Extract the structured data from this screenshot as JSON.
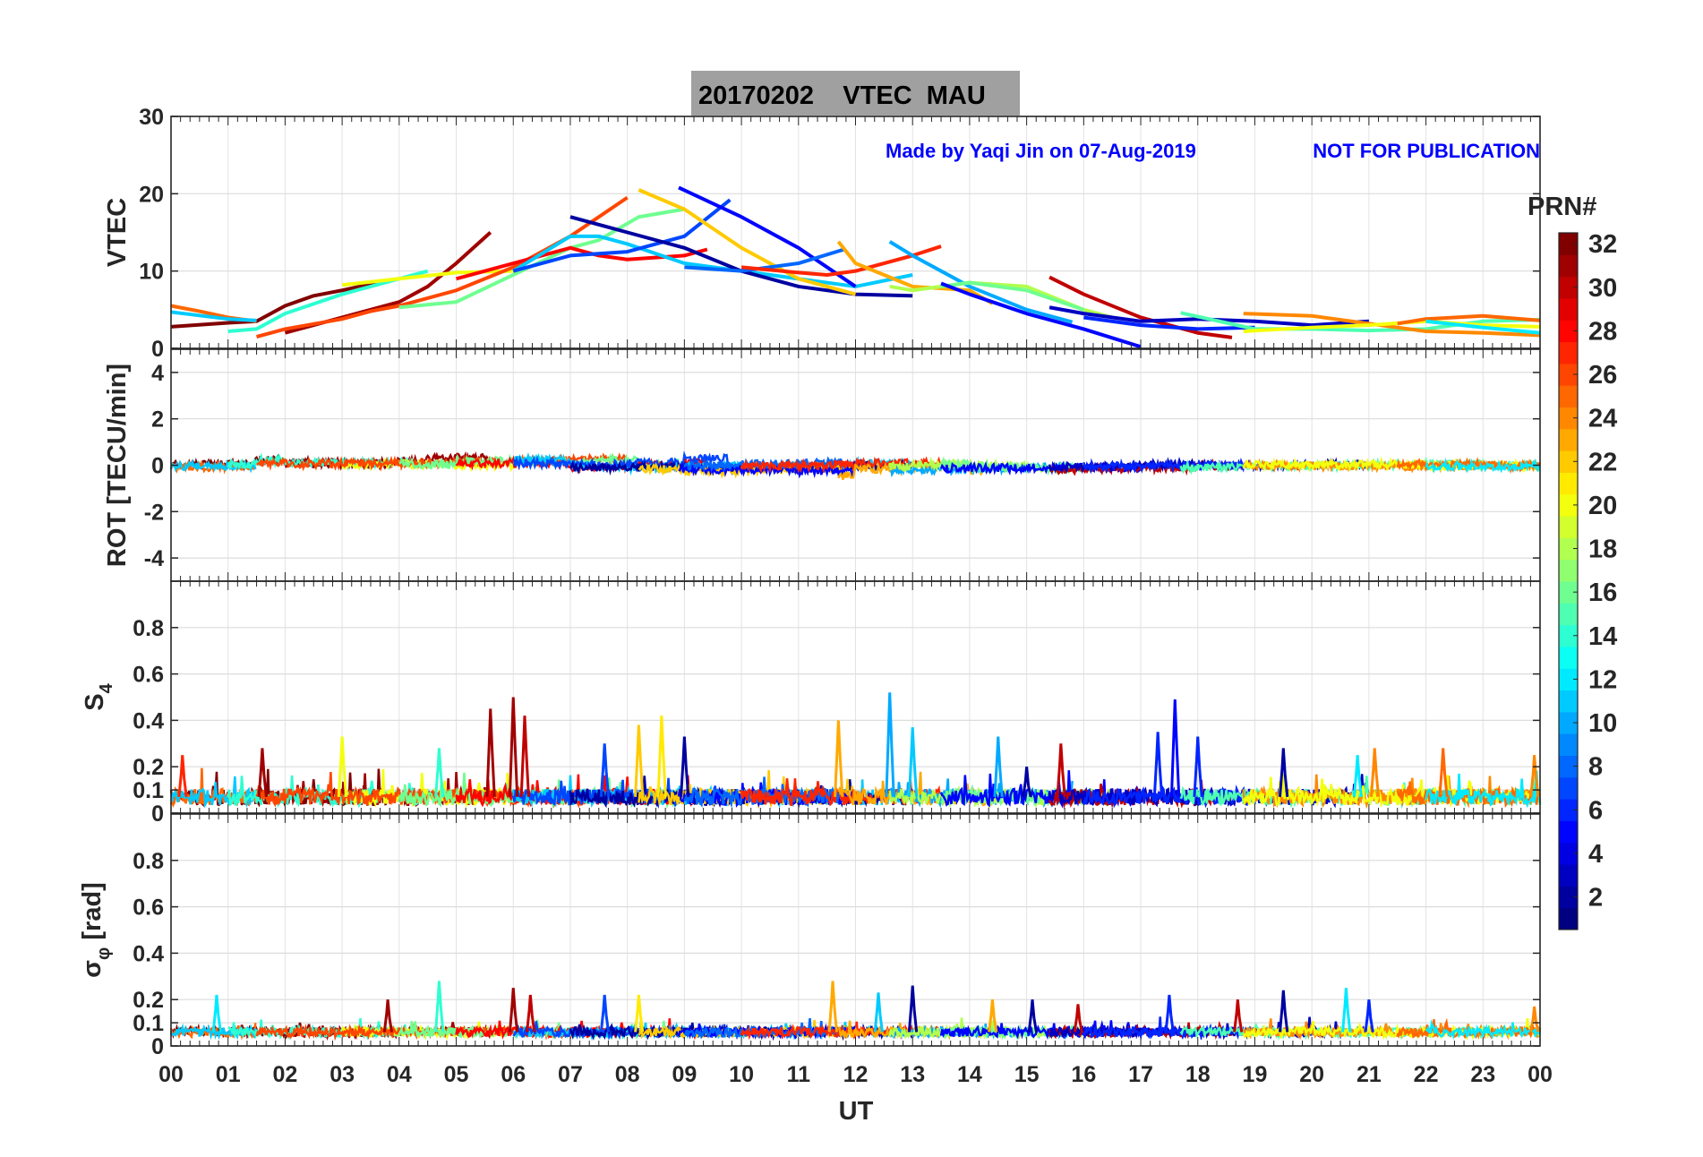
{
  "chart_data": {
    "type": "line",
    "title": "20170202    VTEC  MAU",
    "watermark": [
      "Made by Yaqi Jin on 07-Aug-2019",
      "NOT FOR PUBLICATION"
    ],
    "xlabel": "UT",
    "xlim": [
      0,
      24
    ],
    "xticks": [
      "00",
      "01",
      "02",
      "03",
      "04",
      "05",
      "06",
      "07",
      "08",
      "09",
      "10",
      "11",
      "12",
      "13",
      "14",
      "15",
      "16",
      "17",
      "18",
      "19",
      "20",
      "21",
      "22",
      "23",
      "00"
    ],
    "colorbar": {
      "label": "PRN#",
      "range": [
        1,
        32
      ],
      "ticks": [
        "2",
        "4",
        "6",
        "8",
        "10",
        "12",
        "14",
        "16",
        "18",
        "20",
        "22",
        "24",
        "26",
        "28",
        "30",
        "32"
      ],
      "colormap": "jet"
    },
    "panels": [
      {
        "id": "vtec",
        "ylabel": "VTEC",
        "ylim": [
          0,
          30
        ],
        "yticks": [
          0,
          10,
          20,
          30
        ],
        "ytick_labels": [
          "0",
          "10",
          "20",
          "30"
        ]
      },
      {
        "id": "rot",
        "ylabel": "ROT [TECU/min]",
        "ylim": [
          -5,
          5
        ],
        "yticks": [
          -4,
          -2,
          0,
          2,
          4
        ],
        "ytick_labels": [
          "-4",
          "-2",
          "0",
          "2",
          "4"
        ]
      },
      {
        "id": "s4",
        "ylabel": "S",
        "ylabel_sub": "4",
        "ylim": [
          0,
          1
        ],
        "yticks": [
          0,
          0.1,
          0.2,
          0.4,
          0.6,
          0.8
        ],
        "ytick_labels": [
          "0",
          "0.1",
          "0.2",
          "0.4",
          "0.6",
          "0.8"
        ]
      },
      {
        "id": "sigma",
        "ylabel": "σ",
        "ylabel_sub": "φ",
        "ylabel_unit": "[rad]",
        "ylim": [
          0,
          1
        ],
        "yticks": [
          0,
          0.1,
          0.2,
          0.4,
          0.6,
          0.8
        ],
        "ytick_labels": [
          "0",
          "0.1",
          "0.2",
          "0.4",
          "0.6",
          "0.8"
        ]
      }
    ],
    "vtec_tracks": [
      {
        "prn": 32,
        "points": [
          [
            0,
            2.8
          ],
          [
            1,
            3.3
          ],
          [
            1.5,
            3.5
          ],
          [
            2,
            5.5
          ],
          [
            2.5,
            6.8
          ],
          [
            3,
            7.5
          ],
          [
            3.5,
            8.3
          ],
          [
            3.8,
            8.8
          ]
        ]
      },
      {
        "prn": 31,
        "points": [
          [
            2,
            2
          ],
          [
            3,
            4
          ],
          [
            4,
            6
          ],
          [
            4.5,
            8
          ],
          [
            5,
            11
          ],
          [
            5.6,
            15
          ]
        ]
      },
      {
        "prn": 25,
        "points": [
          [
            0,
            5.5
          ],
          [
            0.5,
            4.8
          ],
          [
            1,
            4
          ],
          [
            1.5,
            3.5
          ]
        ]
      },
      {
        "prn": 11,
        "points": [
          [
            0,
            4.7
          ],
          [
            1,
            3.8
          ],
          [
            1.5,
            3.6
          ]
        ]
      },
      {
        "prn": 14,
        "points": [
          [
            1,
            2.2
          ],
          [
            1.5,
            2.5
          ],
          [
            2,
            4.5
          ],
          [
            3,
            7
          ],
          [
            3.5,
            8
          ],
          [
            4.5,
            10
          ]
        ]
      },
      {
        "prn": 20,
        "points": [
          [
            3,
            8.2
          ],
          [
            4,
            9
          ],
          [
            5,
            9.8
          ],
          [
            6,
            10
          ]
        ]
      },
      {
        "prn": 26,
        "points": [
          [
            1.5,
            1.5
          ],
          [
            2,
            2.5
          ],
          [
            3,
            3.8
          ],
          [
            3.5,
            4.8
          ],
          [
            4,
            5.5
          ],
          [
            5,
            7.5
          ],
          [
            6,
            10.5
          ],
          [
            7,
            14.5
          ],
          [
            8,
            19.5
          ]
        ]
      },
      {
        "prn": 16,
        "points": [
          [
            4,
            5.3
          ],
          [
            5,
            6
          ],
          [
            6,
            9.5
          ],
          [
            7,
            13
          ],
          [
            7.5,
            14
          ],
          [
            8.2,
            17
          ],
          [
            9,
            18
          ]
        ]
      },
      {
        "prn": 28,
        "points": [
          [
            5,
            9
          ],
          [
            6,
            11
          ],
          [
            7,
            13
          ],
          [
            7.5,
            12
          ],
          [
            8,
            11.5
          ],
          [
            9,
            12
          ],
          [
            9.4,
            12.8
          ]
        ]
      },
      {
        "prn": 11,
        "points": [
          [
            6,
            10
          ],
          [
            7,
            14.5
          ],
          [
            7.5,
            14.5
          ],
          [
            8,
            13.5
          ],
          [
            9,
            11
          ],
          [
            10,
            10
          ],
          [
            11,
            9
          ],
          [
            12,
            8
          ],
          [
            13,
            9.5
          ]
        ]
      },
      {
        "prn": 7,
        "points": [
          [
            6,
            10
          ],
          [
            7,
            12
          ],
          [
            8,
            12.5
          ],
          [
            9,
            14.5
          ],
          [
            9.8,
            19.2
          ]
        ]
      },
      {
        "prn": 2,
        "points": [
          [
            7,
            17
          ],
          [
            8,
            15
          ],
          [
            9,
            13
          ],
          [
            10,
            10
          ],
          [
            11,
            8
          ],
          [
            12,
            7
          ],
          [
            13,
            6.8
          ]
        ]
      },
      {
        "prn": 22,
        "points": [
          [
            8.2,
            20.5
          ],
          [
            9,
            18
          ],
          [
            10,
            13
          ],
          [
            11,
            9
          ],
          [
            12,
            7
          ]
        ]
      },
      {
        "prn": 5,
        "points": [
          [
            8.9,
            20.8
          ],
          [
            10,
            17
          ],
          [
            11,
            13
          ],
          [
            12,
            8
          ]
        ]
      },
      {
        "prn": 8,
        "points": [
          [
            9,
            10.5
          ],
          [
            10,
            10
          ],
          [
            11,
            11
          ],
          [
            11.8,
            12.8
          ]
        ]
      },
      {
        "prn": 27,
        "points": [
          [
            10,
            10.5
          ],
          [
            11,
            9.8
          ],
          [
            11.5,
            9.5
          ],
          [
            12,
            10
          ],
          [
            13,
            12
          ],
          [
            13.5,
            13.2
          ]
        ]
      },
      {
        "prn": 23,
        "points": [
          [
            11.7,
            13.8
          ],
          [
            12,
            11
          ],
          [
            13,
            8
          ],
          [
            14,
            7.5
          ],
          [
            14.4,
            5.8
          ]
        ]
      },
      {
        "prn": 10,
        "points": [
          [
            12.6,
            13.8
          ],
          [
            13,
            12
          ],
          [
            14,
            8
          ],
          [
            15,
            5
          ],
          [
            15.8,
            3.4
          ]
        ]
      },
      {
        "prn": 18,
        "points": [
          [
            12.6,
            8
          ],
          [
            13,
            7.5
          ],
          [
            14,
            8.5
          ],
          [
            15,
            8
          ],
          [
            16,
            5
          ],
          [
            16.5,
            4
          ]
        ]
      },
      {
        "prn": 16,
        "points": [
          [
            13.5,
            8
          ],
          [
            14,
            8.5
          ],
          [
            15,
            7.5
          ],
          [
            16,
            5
          ]
        ]
      },
      {
        "prn": 5,
        "points": [
          [
            13.5,
            8.4
          ],
          [
            14,
            7
          ],
          [
            15,
            4.5
          ],
          [
            16,
            2.5
          ],
          [
            17,
            0.2
          ]
        ]
      },
      {
        "prn": 30,
        "points": [
          [
            15.4,
            9.2
          ],
          [
            16,
            7
          ],
          [
            17,
            4
          ],
          [
            18,
            2
          ],
          [
            18.6,
            1.4
          ]
        ]
      },
      {
        "prn": 3,
        "points": [
          [
            15.4,
            5.3
          ],
          [
            16,
            4.5
          ],
          [
            17,
            3.5
          ],
          [
            18,
            3.8
          ],
          [
            19,
            3.5
          ],
          [
            20,
            3
          ],
          [
            21,
            3.5
          ]
        ]
      },
      {
        "prn": 6,
        "points": [
          [
            16,
            4
          ],
          [
            17,
            3
          ],
          [
            18,
            2.5
          ],
          [
            19,
            2.7
          ]
        ]
      },
      {
        "prn": 15,
        "points": [
          [
            17.7,
            4.6
          ],
          [
            18.5,
            3.3
          ],
          [
            19,
            2.5
          ],
          [
            20,
            2.5
          ],
          [
            21,
            2.3
          ],
          [
            22,
            2.5
          ],
          [
            23,
            3.5
          ],
          [
            24,
            3.7
          ]
        ]
      },
      {
        "prn": 24,
        "points": [
          [
            18.8,
            4.5
          ],
          [
            20,
            4.2
          ],
          [
            21,
            3.2
          ],
          [
            22,
            2.2
          ],
          [
            23,
            2
          ],
          [
            24,
            1.7
          ]
        ]
      },
      {
        "prn": 20,
        "points": [
          [
            18.8,
            2.2
          ],
          [
            20,
            2.7
          ],
          [
            21,
            3
          ],
          [
            22,
            3.5
          ],
          [
            23,
            3
          ],
          [
            24,
            2.8
          ]
        ]
      },
      {
        "prn": 25,
        "points": [
          [
            21.5,
            3.2
          ],
          [
            22,
            3.8
          ],
          [
            23,
            4.2
          ],
          [
            24,
            3.6
          ]
        ]
      },
      {
        "prn": 12,
        "points": [
          [
            22,
            3.5
          ],
          [
            23,
            2.7
          ],
          [
            24,
            2
          ]
        ]
      }
    ],
    "rot_baseline": 0,
    "s4_baseline": 0.07,
    "sigma_baseline": 0.06,
    "s4_spikes": [
      [
        0.2,
        0.25,
        27
      ],
      [
        1.6,
        0.28,
        31
      ],
      [
        3.0,
        0.33,
        20
      ],
      [
        4.7,
        0.28,
        14
      ],
      [
        5.6,
        0.45,
        31
      ],
      [
        6.0,
        0.5,
        31
      ],
      [
        6.2,
        0.42,
        30
      ],
      [
        7.6,
        0.3,
        7
      ],
      [
        8.2,
        0.38,
        22
      ],
      [
        8.6,
        0.42,
        21
      ],
      [
        9.0,
        0.33,
        2
      ],
      [
        11.7,
        0.4,
        23
      ],
      [
        12.6,
        0.52,
        10
      ],
      [
        13.0,
        0.37,
        11
      ],
      [
        14.5,
        0.33,
        10
      ],
      [
        15.0,
        0.2,
        2
      ],
      [
        15.6,
        0.3,
        30
      ],
      [
        17.3,
        0.35,
        6
      ],
      [
        17.6,
        0.49,
        5
      ],
      [
        18.0,
        0.33,
        6
      ],
      [
        19.5,
        0.28,
        2
      ],
      [
        20.8,
        0.25,
        12
      ],
      [
        21.1,
        0.28,
        24
      ],
      [
        22.3,
        0.28,
        25
      ],
      [
        23.9,
        0.25,
        24
      ]
    ],
    "sigma_spikes": [
      [
        0.8,
        0.22,
        12
      ],
      [
        3.8,
        0.2,
        31
      ],
      [
        4.7,
        0.28,
        14
      ],
      [
        6.0,
        0.25,
        31
      ],
      [
        6.3,
        0.22,
        30
      ],
      [
        7.6,
        0.22,
        7
      ],
      [
        8.2,
        0.22,
        21
      ],
      [
        11.6,
        0.28,
        23
      ],
      [
        12.4,
        0.23,
        11
      ],
      [
        13.0,
        0.26,
        2
      ],
      [
        14.4,
        0.2,
        23
      ],
      [
        15.1,
        0.2,
        2
      ],
      [
        15.9,
        0.18,
        30
      ],
      [
        17.5,
        0.22,
        6
      ],
      [
        18.7,
        0.2,
        30
      ],
      [
        19.5,
        0.24,
        2
      ],
      [
        20.6,
        0.25,
        12
      ],
      [
        21.0,
        0.2,
        6
      ],
      [
        23.9,
        0.17,
        24
      ]
    ]
  }
}
